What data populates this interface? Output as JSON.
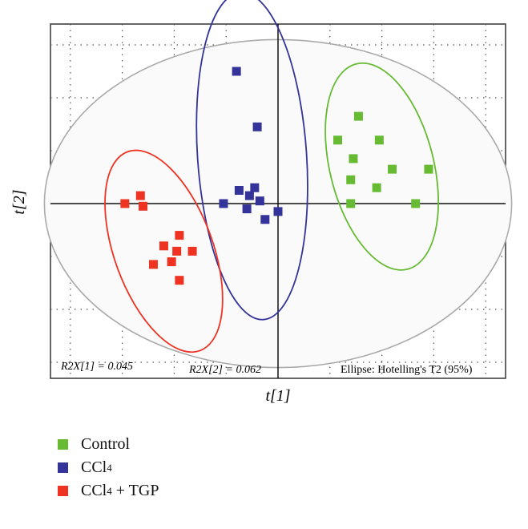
{
  "chart_data": {
    "type": "scatter",
    "xlabel": "t[1]",
    "ylabel": "t[2]",
    "xlim": [
      -10,
      10
    ],
    "ylim": [
      -6.2,
      7.0
    ],
    "grid": true,
    "annotations": {
      "r2x1": "R2X[1] = 0.045",
      "r2x2": "R2X[2] = 0.062",
      "ellipse_note": "Ellipse: Hotelling's T2 (95%)"
    },
    "series": [
      {
        "name": "Control",
        "color": "#66bb33",
        "points": [
          [
            3.1,
            3.3
          ],
          [
            2.3,
            2.4
          ],
          [
            3.9,
            2.4
          ],
          [
            2.9,
            1.7
          ],
          [
            4.4,
            1.3
          ],
          [
            5.8,
            1.3
          ],
          [
            2.8,
            0.9
          ],
          [
            3.8,
            0.6
          ],
          [
            2.8,
            0.0
          ],
          [
            5.3,
            0.0
          ]
        ]
      },
      {
        "name": "CCl4",
        "color": "#333399",
        "points": [
          [
            -1.6,
            5.0
          ],
          [
            -0.8,
            2.9
          ],
          [
            -1.5,
            0.5
          ],
          [
            -0.9,
            0.6
          ],
          [
            -1.1,
            0.3
          ],
          [
            -2.1,
            0.0
          ],
          [
            -0.7,
            0.1
          ],
          [
            -1.2,
            -0.2
          ],
          [
            -0.5,
            -0.6
          ],
          [
            0.0,
            -0.3
          ]
        ]
      },
      {
        "name": "CCl4 + TGP",
        "color": "#ee3322",
        "points": [
          [
            -5.3,
            0.3
          ],
          [
            -5.9,
            0.0
          ],
          [
            -5.2,
            -0.1
          ],
          [
            -3.8,
            -1.2
          ],
          [
            -4.4,
            -1.6
          ],
          [
            -3.3,
            -1.8
          ],
          [
            -3.9,
            -1.8
          ],
          [
            -4.1,
            -2.2
          ],
          [
            -4.8,
            -2.3
          ],
          [
            -3.8,
            -2.9
          ]
        ]
      }
    ],
    "ellipses": [
      {
        "series": "Control",
        "cx": 4.0,
        "cy": 1.4,
        "rx": 2.0,
        "ry": 4.0,
        "angle": -14,
        "color": "#66bb33"
      },
      {
        "series": "CCl4",
        "cx": -1.0,
        "cy": 1.8,
        "rx": 2.1,
        "ry": 6.2,
        "angle": -4,
        "color": "#333399"
      },
      {
        "series": "CCl4 + TGP",
        "cx": -4.4,
        "cy": -1.8,
        "rx": 1.9,
        "ry": 4.0,
        "angle": -20,
        "color": "#ee3322"
      },
      {
        "series": "Hotelling T2 (95%)",
        "cx": 0,
        "cy": 0,
        "rx": 9.0,
        "ry": 6.2,
        "angle": 0,
        "color": "#aaaaaa"
      }
    ]
  },
  "legend": {
    "items": [
      {
        "label": "Control",
        "color": "#66bb33"
      },
      {
        "label": "CCl",
        "sub": "4",
        "suffix": "",
        "color": "#333399"
      },
      {
        "label": "CCl",
        "sub": "4",
        "suffix": " + TGP",
        "color": "#ee3322"
      }
    ]
  }
}
